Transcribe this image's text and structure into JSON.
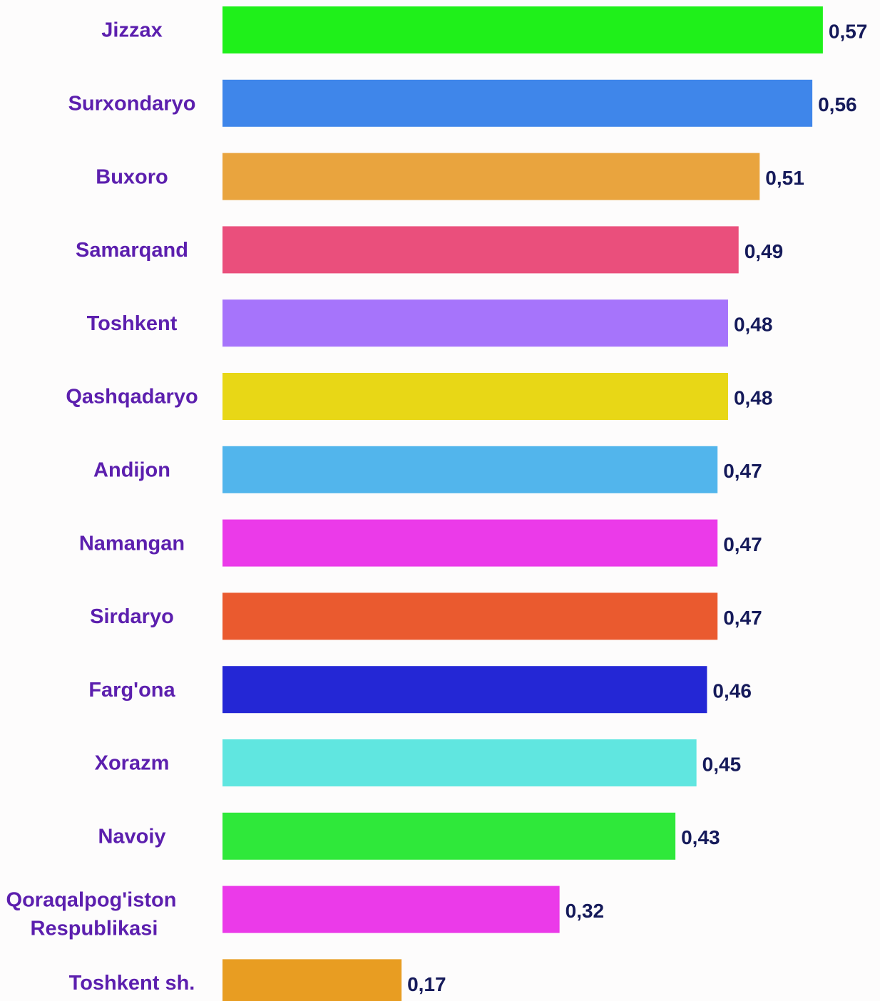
{
  "chart_data": {
    "type": "bar",
    "orientation": "horizontal",
    "categories": [
      "Jizzax",
      "Surxondaryo",
      "Buxoro",
      "Samarqand",
      "Toshkent",
      "Qashqadaryo",
      "Andijon",
      "Namangan",
      "Sirdaryo",
      "Farg'ona",
      "Xorazm",
      "Navoiy",
      "Qoraqalpog'iston Respublikasi",
      "Toshkent sh."
    ],
    "values": [
      0.57,
      0.56,
      0.51,
      0.49,
      0.48,
      0.48,
      0.47,
      0.47,
      0.47,
      0.46,
      0.45,
      0.43,
      0.32,
      0.17
    ],
    "value_labels": [
      "0,57",
      "0,56",
      "0,51",
      "0,49",
      "0,48",
      "0,48",
      "0,47",
      "0,47",
      "0,47",
      "0,46",
      "0,45",
      "0,43",
      "0,32",
      "0,17"
    ],
    "colors": [
      "#1ff01a",
      "#3f86ea",
      "#e9a43e",
      "#ea4f7c",
      "#a674fb",
      "#e8d716",
      "#52b5ec",
      "#eb3ae9",
      "#ea5a2f",
      "#2427d5",
      "#60e6e0",
      "#2fe83a",
      "#eb3ae9",
      "#e89d22"
    ]
  }
}
